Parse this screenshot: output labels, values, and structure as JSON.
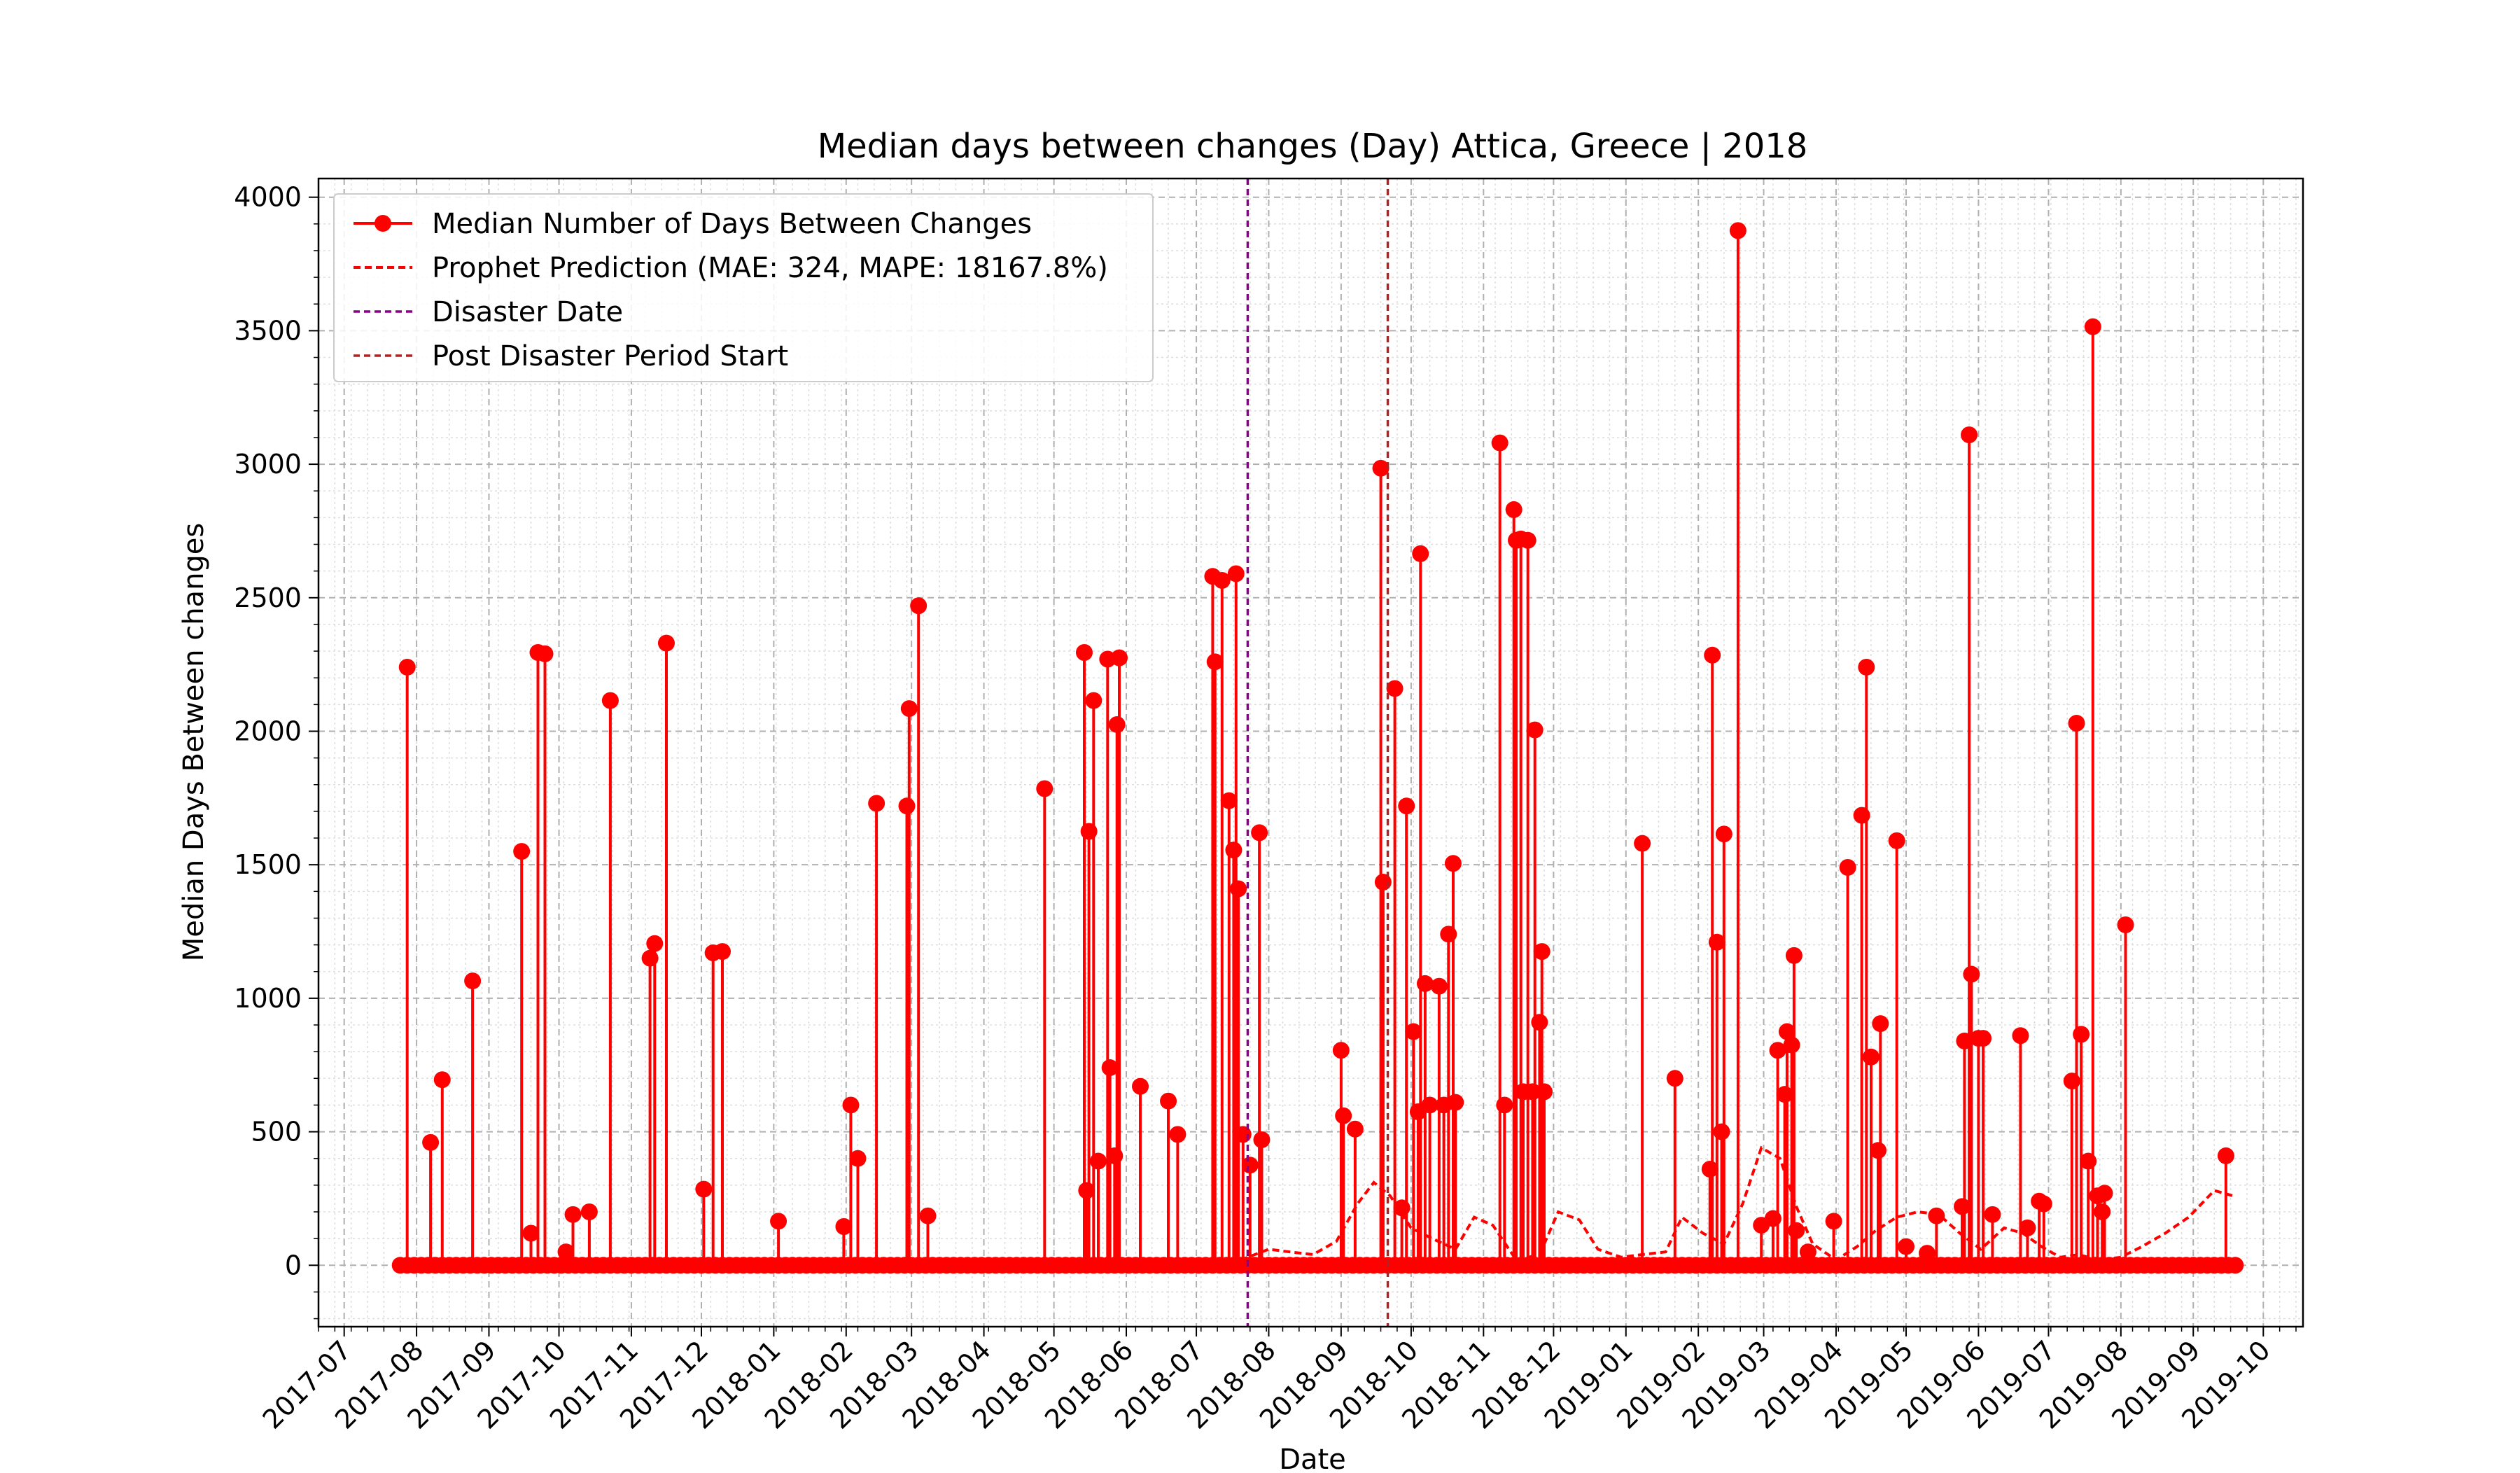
{
  "chart_data": {
    "type": "line",
    "title": "Median days between changes (Day) Attica, Greece | 2018",
    "xlabel": "Date",
    "ylabel": "Median Days Between changes",
    "xlim": [
      "2017-06-20",
      "2019-10-18"
    ],
    "ylim": [
      -230,
      4070
    ],
    "grid": true,
    "legend_position": "top-left",
    "x_ticks": [
      "2017-07",
      "2017-08",
      "2017-09",
      "2017-10",
      "2017-11",
      "2017-12",
      "2018-01",
      "2018-02",
      "2018-03",
      "2018-04",
      "2018-05",
      "2018-06",
      "2018-07",
      "2018-08",
      "2018-09",
      "2018-10",
      "2018-11",
      "2018-12",
      "2019-01",
      "2019-02",
      "2019-03",
      "2019-04",
      "2019-05",
      "2019-06",
      "2019-07",
      "2019-08",
      "2019-09",
      "2019-10"
    ],
    "y_ticks": [
      0,
      500,
      1000,
      1500,
      2000,
      2500,
      3000,
      3500,
      4000
    ],
    "date_range": [
      "2017-07-25",
      "2019-09-20"
    ],
    "series": [
      {
        "name": "Median Number of Days Between Changes",
        "color": "#ff0000",
        "style": "solid line with circle markers",
        "baseline": 0,
        "spikes": [
          {
            "x": "2017-07-28",
            "y": 2240
          },
          {
            "x": "2017-08-07",
            "y": 460
          },
          {
            "x": "2017-08-12",
            "y": 695
          },
          {
            "x": "2017-08-25",
            "y": 1065
          },
          {
            "x": "2017-09-15",
            "y": 1550
          },
          {
            "x": "2017-09-19",
            "y": 120
          },
          {
            "x": "2017-09-22",
            "y": 2295
          },
          {
            "x": "2017-09-25",
            "y": 2290
          },
          {
            "x": "2017-10-04",
            "y": 50
          },
          {
            "x": "2017-10-07",
            "y": 190
          },
          {
            "x": "2017-10-14",
            "y": 200
          },
          {
            "x": "2017-10-23",
            "y": 2115
          },
          {
            "x": "2017-11-09",
            "y": 1150
          },
          {
            "x": "2017-11-11",
            "y": 1205
          },
          {
            "x": "2017-11-16",
            "y": 2330
          },
          {
            "x": "2017-12-02",
            "y": 285
          },
          {
            "x": "2017-12-06",
            "y": 1170
          },
          {
            "x": "2017-12-10",
            "y": 1175
          },
          {
            "x": "2018-01-03",
            "y": 165
          },
          {
            "x": "2018-01-31",
            "y": 145
          },
          {
            "x": "2018-02-03",
            "y": 600
          },
          {
            "x": "2018-02-06",
            "y": 400
          },
          {
            "x": "2018-02-14",
            "y": 1730
          },
          {
            "x": "2018-02-27",
            "y": 1720
          },
          {
            "x": "2018-02-28",
            "y": 2085
          },
          {
            "x": "2018-03-04",
            "y": 2470
          },
          {
            "x": "2018-03-08",
            "y": 185
          },
          {
            "x": "2018-04-27",
            "y": 1785
          },
          {
            "x": "2018-05-14",
            "y": 2295
          },
          {
            "x": "2018-05-15",
            "y": 280
          },
          {
            "x": "2018-05-16",
            "y": 1625
          },
          {
            "x": "2018-05-18",
            "y": 2115
          },
          {
            "x": "2018-05-20",
            "y": 390
          },
          {
            "x": "2018-05-24",
            "y": 2270
          },
          {
            "x": "2018-05-25",
            "y": 740
          },
          {
            "x": "2018-05-27",
            "y": 410
          },
          {
            "x": "2018-05-28",
            "y": 2025
          },
          {
            "x": "2018-05-29",
            "y": 2275
          },
          {
            "x": "2018-06-07",
            "y": 670
          },
          {
            "x": "2018-06-19",
            "y": 615
          },
          {
            "x": "2018-06-23",
            "y": 490
          },
          {
            "x": "2018-07-08",
            "y": 2580
          },
          {
            "x": "2018-07-09",
            "y": 2260
          },
          {
            "x": "2018-07-12",
            "y": 2565
          },
          {
            "x": "2018-07-15",
            "y": 1740
          },
          {
            "x": "2018-07-17",
            "y": 1555
          },
          {
            "x": "2018-07-18",
            "y": 2590
          },
          {
            "x": "2018-07-19",
            "y": 1410
          },
          {
            "x": "2018-07-21",
            "y": 490
          },
          {
            "x": "2018-07-24",
            "y": 375
          },
          {
            "x": "2018-07-28",
            "y": 1620
          },
          {
            "x": "2018-07-29",
            "y": 470
          },
          {
            "x": "2018-09-01",
            "y": 805
          },
          {
            "x": "2018-09-02",
            "y": 560
          },
          {
            "x": "2018-09-07",
            "y": 510
          },
          {
            "x": "2018-09-18",
            "y": 2985
          },
          {
            "x": "2018-09-19",
            "y": 1435
          },
          {
            "x": "2018-09-24",
            "y": 2160
          },
          {
            "x": "2018-09-27",
            "y": 215
          },
          {
            "x": "2018-09-29",
            "y": 1720
          },
          {
            "x": "2018-10-02",
            "y": 875
          },
          {
            "x": "2018-10-04",
            "y": 575
          },
          {
            "x": "2018-10-05",
            "y": 2665
          },
          {
            "x": "2018-10-07",
            "y": 1055
          },
          {
            "x": "2018-10-09",
            "y": 600
          },
          {
            "x": "2018-10-13",
            "y": 1045
          },
          {
            "x": "2018-10-15",
            "y": 600
          },
          {
            "x": "2018-10-17",
            "y": 1240
          },
          {
            "x": "2018-10-19",
            "y": 1505
          },
          {
            "x": "2018-10-20",
            "y": 610
          },
          {
            "x": "2018-11-08",
            "y": 3080
          },
          {
            "x": "2018-11-10",
            "y": 600
          },
          {
            "x": "2018-11-14",
            "y": 2830
          },
          {
            "x": "2018-11-15",
            "y": 2715
          },
          {
            "x": "2018-11-17",
            "y": 2720
          },
          {
            "x": "2018-11-18",
            "y": 650
          },
          {
            "x": "2018-11-20",
            "y": 2715
          },
          {
            "x": "2018-11-22",
            "y": 650
          },
          {
            "x": "2018-11-23",
            "y": 2005
          },
          {
            "x": "2018-11-25",
            "y": 910
          },
          {
            "x": "2018-11-26",
            "y": 1175
          },
          {
            "x": "2018-11-27",
            "y": 650
          },
          {
            "x": "2019-01-08",
            "y": 1580
          },
          {
            "x": "2019-01-22",
            "y": 700
          },
          {
            "x": "2019-02-06",
            "y": 360
          },
          {
            "x": "2019-02-07",
            "y": 2285
          },
          {
            "x": "2019-02-09",
            "y": 1210
          },
          {
            "x": "2019-02-11",
            "y": 500
          },
          {
            "x": "2019-02-12",
            "y": 1615
          },
          {
            "x": "2019-02-18",
            "y": 3875
          },
          {
            "x": "2019-02-28",
            "y": 150
          },
          {
            "x": "2019-03-05",
            "y": 175
          },
          {
            "x": "2019-03-07",
            "y": 805
          },
          {
            "x": "2019-03-10",
            "y": 640
          },
          {
            "x": "2019-03-11",
            "y": 875
          },
          {
            "x": "2019-03-13",
            "y": 825
          },
          {
            "x": "2019-03-14",
            "y": 1160
          },
          {
            "x": "2019-03-15",
            "y": 130
          },
          {
            "x": "2019-03-20",
            "y": 50
          },
          {
            "x": "2019-03-31",
            "y": 165
          },
          {
            "x": "2019-04-06",
            "y": 1490
          },
          {
            "x": "2019-04-12",
            "y": 1685
          },
          {
            "x": "2019-04-14",
            "y": 2240
          },
          {
            "x": "2019-04-16",
            "y": 780
          },
          {
            "x": "2019-04-19",
            "y": 430
          },
          {
            "x": "2019-04-20",
            "y": 905
          },
          {
            "x": "2019-04-27",
            "y": 1590
          },
          {
            "x": "2019-05-01",
            "y": 70
          },
          {
            "x": "2019-05-10",
            "y": 45
          },
          {
            "x": "2019-05-14",
            "y": 185
          },
          {
            "x": "2019-05-25",
            "y": 220
          },
          {
            "x": "2019-05-26",
            "y": 840
          },
          {
            "x": "2019-05-28",
            "y": 3110
          },
          {
            "x": "2019-05-29",
            "y": 1090
          },
          {
            "x": "2019-06-01",
            "y": 850
          },
          {
            "x": "2019-06-03",
            "y": 850
          },
          {
            "x": "2019-06-07",
            "y": 190
          },
          {
            "x": "2019-06-19",
            "y": 860
          },
          {
            "x": "2019-06-22",
            "y": 140
          },
          {
            "x": "2019-06-27",
            "y": 240
          },
          {
            "x": "2019-06-29",
            "y": 230
          },
          {
            "x": "2019-07-11",
            "y": 690
          },
          {
            "x": "2019-07-13",
            "y": 2030
          },
          {
            "x": "2019-07-15",
            "y": 865
          },
          {
            "x": "2019-07-18",
            "y": 390
          },
          {
            "x": "2019-07-20",
            "y": 3515
          },
          {
            "x": "2019-07-22",
            "y": 260
          },
          {
            "x": "2019-07-24",
            "y": 200
          },
          {
            "x": "2019-07-25",
            "y": 270
          },
          {
            "x": "2019-08-03",
            "y": 1275
          },
          {
            "x": "2019-09-15",
            "y": 410
          }
        ]
      },
      {
        "name": "Prophet Prediction (MAE: 324, MAPE: 18167.8%)",
        "color": "#ff0000",
        "style": "dashed",
        "x": [
          "2018-07-20",
          "2018-08-01",
          "2018-08-10",
          "2018-08-20",
          "2018-08-30",
          "2018-09-08",
          "2018-09-15",
          "2018-09-22",
          "2018-10-01",
          "2018-10-10",
          "2018-10-20",
          "2018-10-28",
          "2018-11-05",
          "2018-11-15",
          "2018-11-25",
          "2018-12-03",
          "2018-12-12",
          "2018-12-20",
          "2018-12-30",
          "2019-01-08",
          "2019-01-18",
          "2019-01-25",
          "2019-02-03",
          "2019-02-12",
          "2019-02-20",
          "2019-02-28",
          "2019-03-08",
          "2019-03-15",
          "2019-03-22",
          "2019-04-01",
          "2019-04-10",
          "2019-04-18",
          "2019-04-27",
          "2019-05-06",
          "2019-05-15",
          "2019-05-24",
          "2019-06-02",
          "2019-06-12",
          "2019-06-20",
          "2019-06-28",
          "2019-07-06",
          "2019-07-14",
          "2019-07-22",
          "2019-08-01",
          "2019-08-10",
          "2019-08-20",
          "2019-08-30",
          "2019-09-10",
          "2019-09-18"
        ],
        "y": [
          20,
          60,
          50,
          40,
          90,
          230,
          310,
          260,
          140,
          100,
          60,
          180,
          150,
          20,
          40,
          200,
          170,
          60,
          30,
          40,
          50,
          180,
          120,
          80,
          230,
          440,
          400,
          220,
          80,
          20,
          70,
          130,
          180,
          200,
          190,
          120,
          60,
          140,
          120,
          70,
          30,
          40,
          20,
          30,
          70,
          120,
          180,
          280,
          260
        ]
      },
      {
        "name": "Disaster Date",
        "color": "#8b008b",
        "style": "dashed vertical line",
        "x": "2018-07-23"
      },
      {
        "name": "Post Disaster Period Start",
        "color": "#b22222",
        "style": "dashed vertical line",
        "x": "2018-09-21"
      }
    ]
  }
}
